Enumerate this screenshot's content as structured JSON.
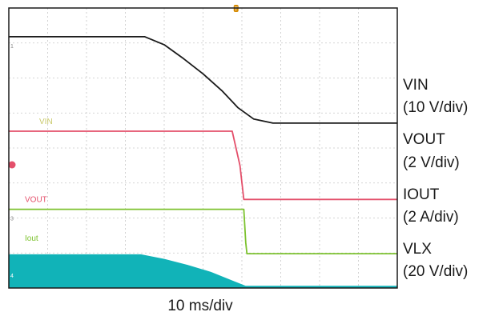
{
  "chart_data": {
    "type": "line",
    "title": "",
    "xlabel": "10 ms/div",
    "ylabel": "",
    "grid": true,
    "x_divisions": 10,
    "y_divisions": 8,
    "trigger_marker": "T",
    "series": [
      {
        "name": "VIN",
        "scale": "(10 V/div)",
        "channel_marker": "1",
        "color": "#1a1a1a",
        "x_div": [
          0,
          3.5,
          4.0,
          4.5,
          5.0,
          5.5,
          5.9,
          6.3,
          6.8,
          10
        ],
        "y_div": [
          7.18,
          7.18,
          6.95,
          6.55,
          6.12,
          5.62,
          5.15,
          4.83,
          4.71,
          4.71
        ]
      },
      {
        "name": "VOUT",
        "scale": "(2 V/div)",
        "channel_marker": "2",
        "color": "#e4506b",
        "x_div": [
          0,
          5.75,
          5.95,
          6.05,
          10
        ],
        "y_div": [
          4.48,
          4.48,
          3.5,
          2.53,
          2.53
        ],
        "annotation": "VIN"
      },
      {
        "name": "IOUT",
        "scale": "(2 A/div)",
        "channel_marker": "3",
        "color": "#7cc22e",
        "x_div": [
          0,
          6.05,
          6.1,
          6.13,
          10
        ],
        "y_div": [
          2.25,
          2.25,
          1.3,
          0.98,
          0.98
        ],
        "annotation": "VOUT"
      },
      {
        "name": "VLX",
        "scale": "(20 V/div)",
        "channel_marker": "4",
        "color": "#11b3b8",
        "style": "filled",
        "x_div": [
          0,
          3.4,
          4.0,
          4.6,
          5.2,
          5.8,
          6.1,
          10
        ],
        "y_div": [
          0.95,
          0.95,
          0.82,
          0.65,
          0.45,
          0.18,
          0.05,
          0.05
        ],
        "annotation": "Iout"
      }
    ]
  }
}
